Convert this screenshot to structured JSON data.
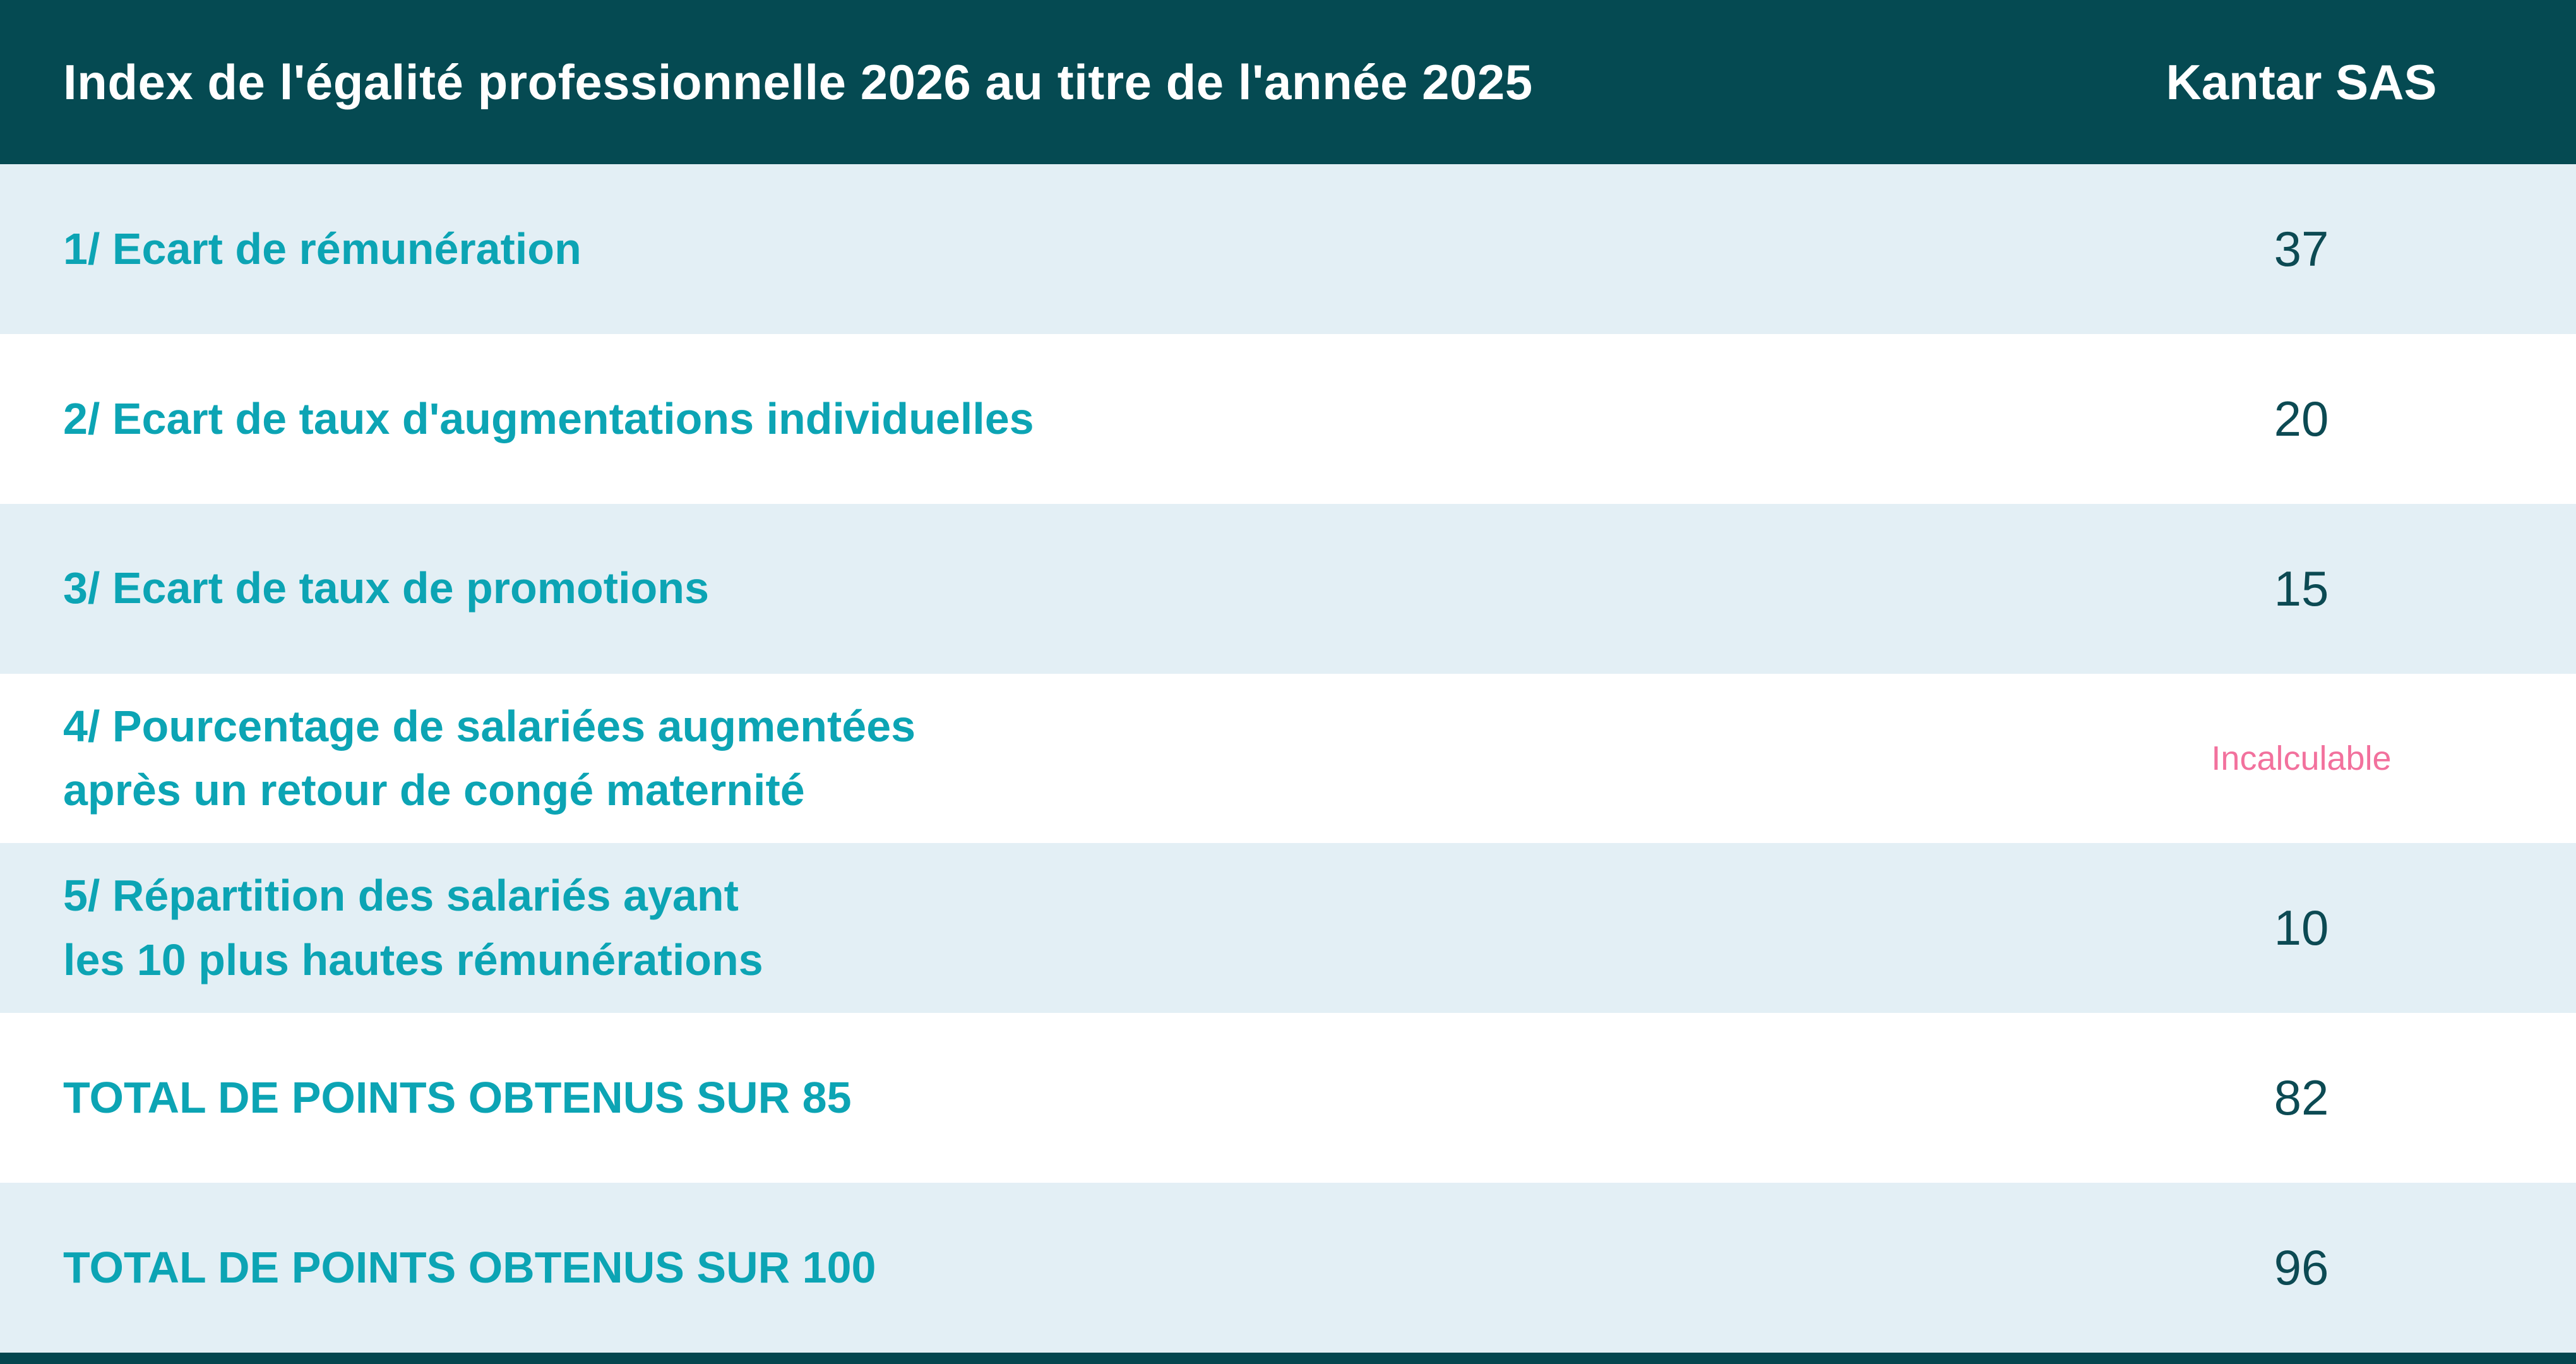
{
  "header": {
    "title": "Index de l'égalité professionnelle 2026 au titre de l'année 2025",
    "company": "Kantar SAS"
  },
  "rows": [
    {
      "lines": [
        "1/ Ecart de rémunération"
      ],
      "value": "37"
    },
    {
      "lines": [
        "2/ Ecart de taux d'augmentations individuelles"
      ],
      "value": "20"
    },
    {
      "lines": [
        "3/ Ecart de taux de promotions"
      ],
      "value": "15"
    },
    {
      "lines": [
        "4/ Pourcentage de salariées augmentées",
        "après un retour de congé maternité"
      ],
      "value": "Incalculable"
    },
    {
      "lines": [
        "5/ Répartition des salariés ayant",
        "les 10 plus hautes rémunérations"
      ],
      "value": "10"
    },
    {
      "lines": [
        "TOTAL DE POINTS OBTENUS SUR 85"
      ],
      "value": "82"
    },
    {
      "lines": [
        "TOTAL DE POINTS OBTENUS SUR 100"
      ],
      "value": "96"
    }
  ],
  "colors": {
    "header_bg": "#054a52",
    "footer_bg": "#04464f",
    "row_alt_bg": "#e3eff5",
    "row_bg": "#ffffff",
    "accent_teal": "#0ca4b4",
    "value_color": "#0c4a53",
    "pink": "#f2719d",
    "white": "#ffffff"
  }
}
